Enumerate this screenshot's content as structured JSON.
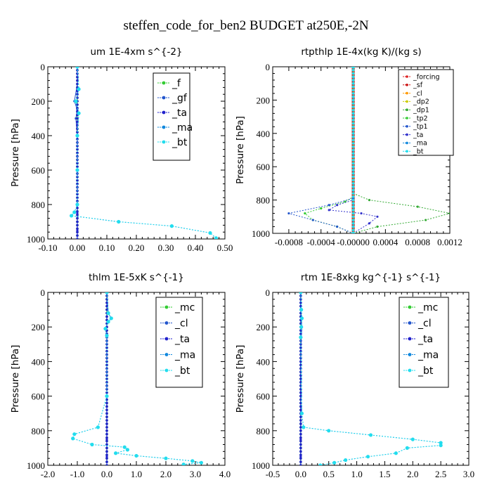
{
  "title": "steffen_code_for_ben2  BUDGET at250E,-2N",
  "chart_data": [
    {
      "type": "line",
      "title": "um   1E-4xm s^{-2}",
      "ylabel": "Pressure [hPa]",
      "xlim": [
        -0.1,
        0.5
      ],
      "ylim": [
        1000,
        0
      ],
      "xticks": [
        "-0.10",
        "0.00",
        "0.10",
        "0.20",
        "0.30",
        "0.40",
        "0.50"
      ],
      "xtick_values": [
        -0.1,
        0.0,
        0.1,
        0.2,
        0.3,
        0.4,
        0.5
      ],
      "yticks": [
        "0",
        "200",
        "400",
        "600",
        "800",
        "1000"
      ],
      "ytick_values": [
        0,
        200,
        400,
        600,
        800,
        1000
      ],
      "legend_position": "top-right",
      "series": [
        {
          "name": "_f",
          "color": "#33cc33",
          "x": [
            0,
            0,
            0,
            0,
            0,
            0,
            0,
            0,
            0,
            0,
            0
          ],
          "y": [
            0,
            100,
            200,
            300,
            400,
            500,
            600,
            700,
            800,
            900,
            1000
          ]
        },
        {
          "name": "_gf",
          "color": "#2255cc",
          "x": [
            0,
            0,
            -0.01,
            0,
            -0.005,
            0,
            0,
            0,
            0,
            0,
            0
          ],
          "y": [
            0,
            100,
            200,
            250,
            300,
            400,
            500,
            600,
            700,
            800,
            1000
          ]
        },
        {
          "name": "_ta",
          "color": "#2222cc",
          "x": [
            0,
            0,
            0,
            0,
            0,
            0,
            0,
            0,
            0
          ],
          "y": [
            0,
            200,
            400,
            600,
            800,
            850,
            900,
            950,
            1000
          ]
        },
        {
          "name": "_ma",
          "color": "#1188dd",
          "x": [
            0,
            0.005,
            -0.005,
            0.005,
            0,
            0,
            0,
            -0.01,
            -0.02,
            0.14,
            0.32,
            0.45,
            0.47
          ],
          "y": [
            0,
            130,
            200,
            270,
            400,
            600,
            800,
            845,
            865,
            900,
            925,
            965,
            995
          ]
        },
        {
          "name": "_bt",
          "color": "#22ddee",
          "x": [
            0,
            0.005,
            -0.005,
            0.005,
            0,
            0,
            0,
            -0.01,
            -0.02,
            0.14,
            0.32,
            0.45,
            0.47
          ],
          "y": [
            0,
            130,
            200,
            270,
            400,
            600,
            800,
            845,
            865,
            900,
            925,
            965,
            995
          ]
        }
      ]
    },
    {
      "type": "line",
      "title": "rtpthlp   1E-4x(kg K)/(kg s)",
      "ylabel": "Pressure [hPa]",
      "xlim": [
        -0.001,
        0.0012
      ],
      "ylim": [
        1000,
        0
      ],
      "xticks": [
        "-0.0008",
        "-0.0004",
        "-0.00000",
        "0.0004",
        "0.0008",
        "0.0012"
      ],
      "xtick_values": [
        -0.0008,
        -0.0004,
        0.0,
        0.0004,
        0.0008,
        0.0012
      ],
      "yticks": [
        "0",
        "200",
        "400",
        "600",
        "800",
        "1000"
      ],
      "ytick_values": [
        0,
        200,
        400,
        600,
        800,
        1000
      ],
      "legend_position": "top-right",
      "series": [
        {
          "name": "_forcing",
          "color": "#dd2222",
          "x": [
            0,
            0
          ],
          "y": [
            0,
            1000
          ]
        },
        {
          "name": "_sf",
          "color": "#cc1111",
          "x": [
            0,
            0
          ],
          "y": [
            0,
            1000
          ]
        },
        {
          "name": "_cl",
          "color": "#ff9900",
          "x": [
            0,
            0
          ],
          "y": [
            0,
            1000
          ]
        },
        {
          "name": "_dp2",
          "color": "#cccc00",
          "x": [
            0,
            0
          ],
          "y": [
            0,
            1000
          ]
        },
        {
          "name": "_dp1",
          "color": "#33aa33",
          "x": [
            0,
            0,
            0.0002,
            0.0008,
            0.0012,
            0.0009,
            0.0003,
            0
          ],
          "y": [
            0,
            760,
            800,
            840,
            880,
            920,
            960,
            1000
          ]
        },
        {
          "name": "_tp2",
          "color": "#33cc33",
          "x": [
            0,
            0,
            -0.0001,
            -0.0004,
            -0.0006,
            -0.0005,
            -0.0002,
            0
          ],
          "y": [
            0,
            780,
            810,
            850,
            880,
            920,
            960,
            1000
          ]
        },
        {
          "name": "_tp1",
          "color": "#2255cc",
          "x": [
            0,
            0,
            -0.0003,
            -0.0008,
            -0.0005,
            -0.0002,
            0
          ],
          "y": [
            0,
            790,
            830,
            880,
            920,
            960,
            1000
          ]
        },
        {
          "name": "_ta",
          "color": "#3333cc",
          "x": [
            0,
            0,
            -0.0002,
            -0.0003,
            0.0001,
            0.0003,
            0.0002,
            0
          ],
          "y": [
            0,
            800,
            830,
            860,
            880,
            900,
            940,
            1000
          ]
        },
        {
          "name": "_ma",
          "color": "#1188dd",
          "x": [
            0,
            0
          ],
          "y": [
            0,
            1000
          ]
        },
        {
          "name": "_bt",
          "color": "#22ddee",
          "x": [
            0,
            0
          ],
          "y": [
            0,
            1000
          ]
        }
      ]
    },
    {
      "type": "line",
      "title": "thlm   1E-5xK s^{-1}",
      "ylabel": "Pressure [hPa]",
      "xlim": [
        -2.0,
        4.0
      ],
      "ylim": [
        1000,
        0
      ],
      "xticks": [
        "-2.0",
        "-1.0",
        "0.0",
        "1.0",
        "2.0",
        "3.0",
        "4.0"
      ],
      "xtick_values": [
        -2.0,
        -1.0,
        0.0,
        1.0,
        2.0,
        3.0,
        4.0
      ],
      "yticks": [
        "0",
        "200",
        "400",
        "600",
        "800",
        "1000"
      ],
      "ytick_values": [
        0,
        200,
        400,
        600,
        800,
        1000
      ],
      "legend_position": "top-right",
      "series": [
        {
          "name": "_mc",
          "color": "#33cc33",
          "x": [
            0,
            0,
            0,
            0,
            0,
            0,
            0,
            0,
            0,
            0,
            0
          ],
          "y": [
            0,
            100,
            200,
            300,
            400,
            500,
            600,
            700,
            800,
            900,
            1000
          ]
        },
        {
          "name": "_cl",
          "color": "#2255cc",
          "x": [
            0,
            0.05,
            0.15,
            0.05,
            -0.05,
            0,
            0,
            0,
            0,
            0
          ],
          "y": [
            0,
            120,
            150,
            170,
            210,
            250,
            400,
            600,
            800,
            1000
          ]
        },
        {
          "name": "_ta",
          "color": "#2222cc",
          "x": [
            0,
            0,
            0,
            0,
            0,
            0,
            0,
            0,
            0,
            0
          ],
          "y": [
            0,
            200,
            400,
            600,
            800,
            850,
            900,
            950,
            980,
            1000
          ]
        },
        {
          "name": "_ma",
          "color": "#1188dd",
          "x": [
            0,
            0.05,
            0.15,
            0.05,
            -0.05,
            0,
            0,
            -0.3,
            -1.1,
            -1.15,
            -0.5,
            0.6,
            0.7,
            0.3,
            1.0,
            2.0,
            2.9,
            3.2,
            2.6
          ],
          "y": [
            0,
            120,
            150,
            170,
            210,
            250,
            600,
            780,
            820,
            845,
            880,
            895,
            910,
            930,
            945,
            960,
            975,
            985,
            995
          ]
        },
        {
          "name": "_bt",
          "color": "#22ddee",
          "x": [
            0,
            0.05,
            0.15,
            0.05,
            -0.05,
            0,
            0,
            -0.3,
            -1.1,
            -1.15,
            -0.5,
            0.6,
            0.7,
            0.3,
            1.0,
            2.0,
            2.9,
            3.2,
            2.6
          ],
          "y": [
            0,
            120,
            150,
            170,
            210,
            250,
            600,
            780,
            820,
            845,
            880,
            895,
            910,
            930,
            945,
            960,
            975,
            985,
            995
          ]
        }
      ]
    },
    {
      "type": "line",
      "title": "rtm   1E-8xkg kg^{-1} s^{-1}",
      "ylabel": "Pressure [hPa]",
      "xlim": [
        -0.5,
        3.0
      ],
      "ylim": [
        1000,
        0
      ],
      "xticks": [
        "-0.5",
        "0.0",
        "0.5",
        "1.0",
        "1.5",
        "2.0",
        "2.5",
        "3.0"
      ],
      "xtick_values": [
        -0.5,
        0.0,
        0.5,
        1.0,
        1.5,
        2.0,
        2.5,
        3.0
      ],
      "yticks": [
        "0",
        "200",
        "400",
        "600",
        "800",
        "1000"
      ],
      "ytick_values": [
        0,
        200,
        400,
        600,
        800,
        1000
      ],
      "legend_position": "top-right",
      "series": [
        {
          "name": "_mc",
          "color": "#33cc33",
          "x": [
            0,
            0,
            0,
            0,
            0,
            0,
            0,
            0,
            0,
            0,
            0
          ],
          "y": [
            0,
            100,
            200,
            300,
            400,
            500,
            600,
            700,
            800,
            900,
            1000
          ]
        },
        {
          "name": "_cl",
          "color": "#2255cc",
          "x": [
            0,
            0,
            0.01,
            0.02,
            0.01,
            0,
            0,
            0
          ],
          "y": [
            0,
            100,
            150,
            200,
            260,
            400,
            600,
            1000
          ]
        },
        {
          "name": "_ta",
          "color": "#2222cc",
          "x": [
            0,
            0,
            0,
            0,
            0,
            0,
            0,
            0,
            0
          ],
          "y": [
            0,
            200,
            400,
            600,
            800,
            850,
            900,
            950,
            1000
          ]
        },
        {
          "name": "_ma",
          "color": "#1188dd",
          "x": [
            0,
            0.01,
            0.02,
            0.01,
            0,
            0.02,
            0.05,
            0.5,
            1.25,
            2.0,
            2.5,
            2.5,
            1.9,
            1.7,
            1.2,
            0.8,
            0.6,
            0.35
          ],
          "y": [
            0,
            100,
            150,
            200,
            260,
            700,
            780,
            800,
            825,
            850,
            870,
            885,
            900,
            930,
            950,
            970,
            985,
            1000
          ]
        },
        {
          "name": "_bt",
          "color": "#22ddee",
          "x": [
            0,
            0.01,
            0.02,
            0.01,
            0,
            0.02,
            0.05,
            0.5,
            1.25,
            2.0,
            2.5,
            2.5,
            1.9,
            1.7,
            1.2,
            0.8,
            0.6,
            0.35
          ],
          "y": [
            0,
            100,
            150,
            200,
            260,
            700,
            780,
            800,
            825,
            850,
            870,
            885,
            900,
            930,
            950,
            970,
            985,
            1000
          ]
        }
      ]
    }
  ]
}
